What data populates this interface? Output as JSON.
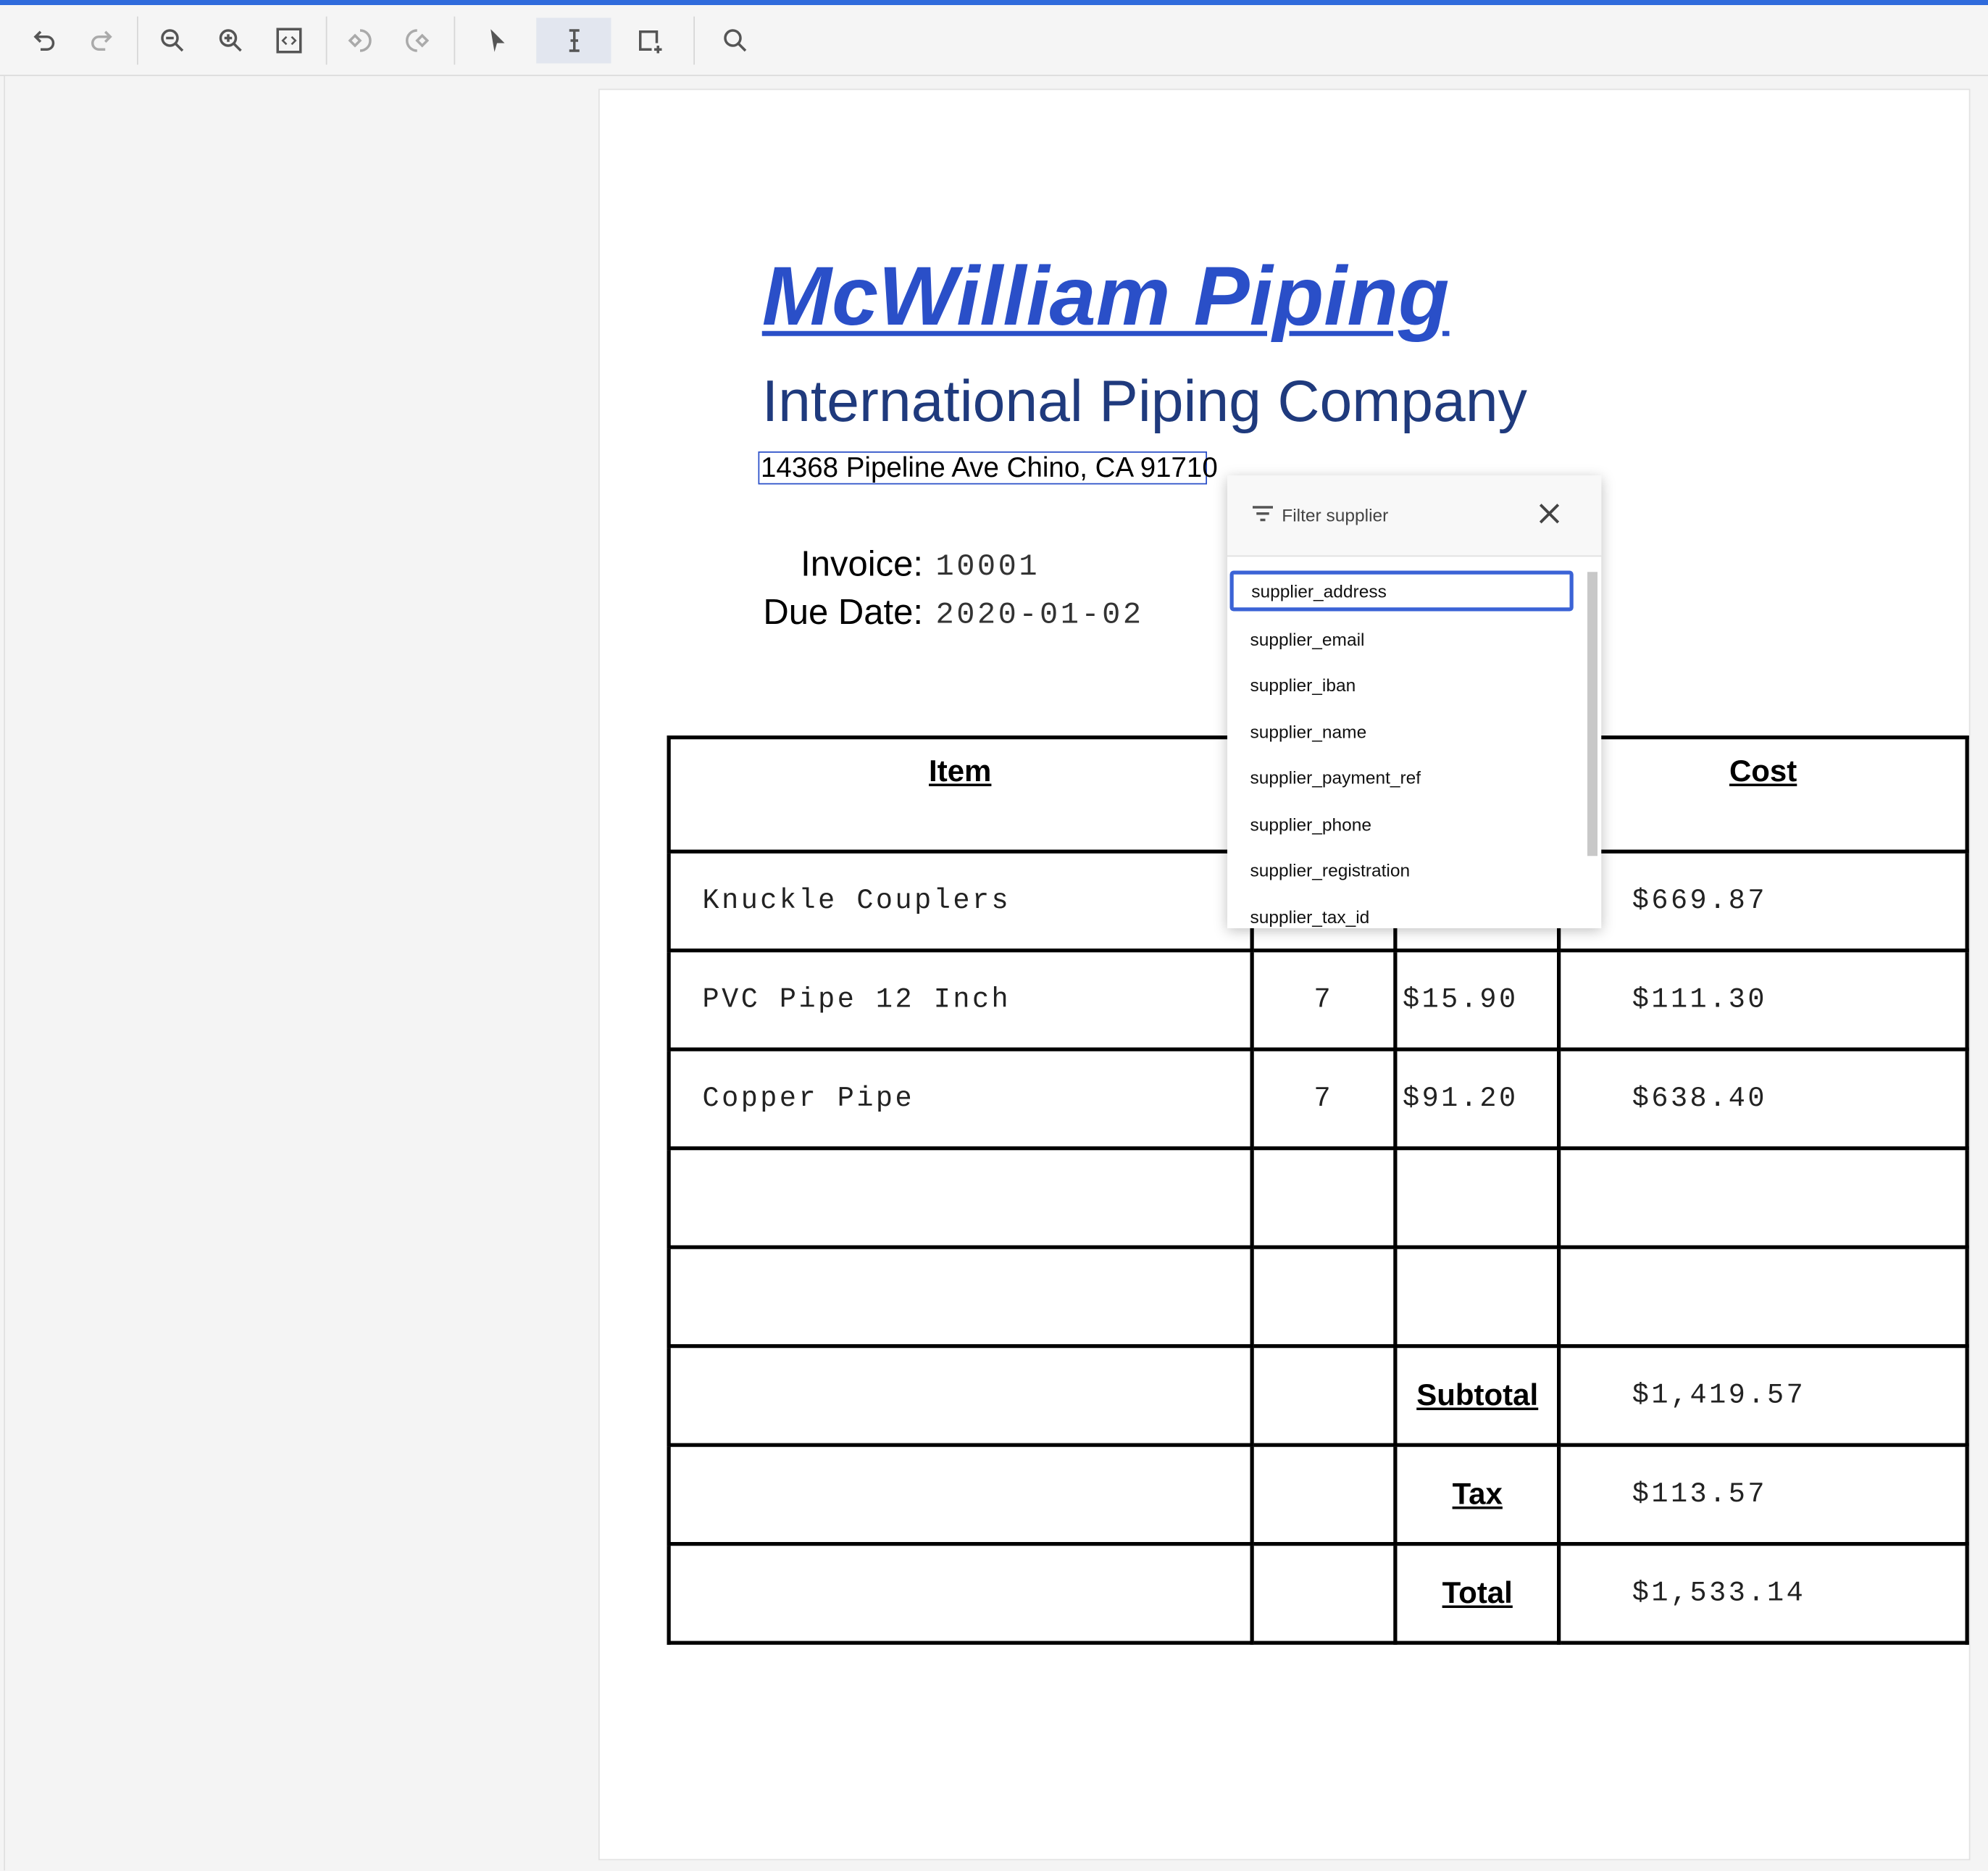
{
  "colors": {
    "accent": "#2f6bdc",
    "title": "#2a4fc8",
    "subtitle": "#1f3a7d",
    "selection": "#3b63d6"
  },
  "toolbar": {
    "buttons": [
      {
        "name": "undo-icon"
      },
      {
        "name": "redo-icon"
      },
      {
        "name": "zoom-out-icon"
      },
      {
        "name": "zoom-in-icon"
      },
      {
        "name": "fit-page-icon"
      },
      {
        "name": "rotate-left-icon"
      },
      {
        "name": "rotate-right-icon"
      },
      {
        "name": "pointer-icon"
      },
      {
        "name": "text-select-icon",
        "active": true
      },
      {
        "name": "add-box-icon"
      },
      {
        "name": "search-icon"
      }
    ]
  },
  "document": {
    "title": "McWilliam Piping",
    "subtitle": "International Piping Company",
    "address": "14368 Pipeline Ave Chino, CA 91710",
    "invoice_label": "Invoice:",
    "invoice_value": "10001",
    "due_label": "Due Date:",
    "due_value": "2020-01-02",
    "table": {
      "headers": {
        "item": "Item",
        "cost": "Cost"
      },
      "rows": [
        {
          "item": "Knuckle Couplers",
          "qty": "",
          "price": "",
          "cost": "$669.87"
        },
        {
          "item": "PVC Pipe 12 Inch",
          "qty": "7",
          "price": "$15.90",
          "cost": "$111.30"
        },
        {
          "item": "Copper Pipe",
          "qty": "7",
          "price": "$91.20",
          "cost": "$638.40"
        },
        {
          "item": "",
          "qty": "",
          "price": "",
          "cost": ""
        },
        {
          "item": "",
          "qty": "",
          "price": "",
          "cost": ""
        }
      ],
      "summary": [
        {
          "label": "Subtotal",
          "value": "$1,419.57"
        },
        {
          "label": "Tax",
          "value": "$113.57"
        },
        {
          "label": "Total",
          "value": "$1,533.14"
        }
      ]
    }
  },
  "popup": {
    "title": "Filter supplier",
    "options": [
      "supplier_address",
      "supplier_email",
      "supplier_iban",
      "supplier_name",
      "supplier_payment_ref",
      "supplier_phone",
      "supplier_registration",
      "supplier_tax_id"
    ],
    "selected": "supplier_address"
  }
}
